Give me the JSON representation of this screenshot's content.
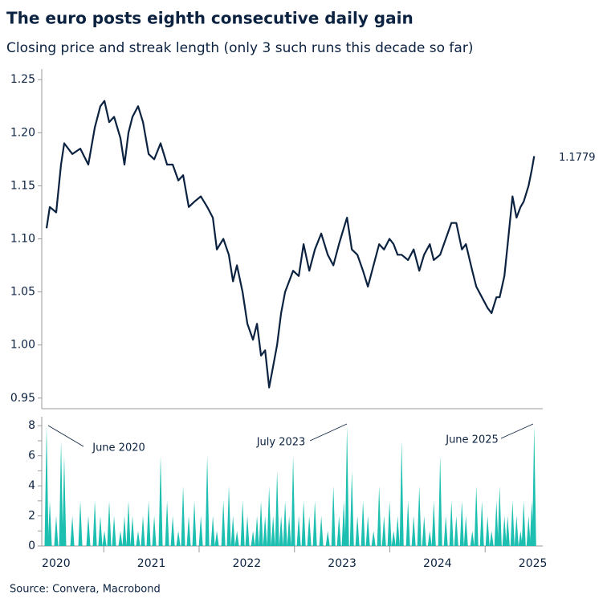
{
  "chart_data": [
    {
      "type": "line",
      "title": "The euro posts eighth consecutive daily gain",
      "subtitle": "Closing price and streak length (only 3 such runs this decade so far)",
      "source": "Source: Convera, Macrobond",
      "x": [
        2020.4,
        2020.434,
        2020.501,
        2020.552,
        2020.585,
        2020.67,
        2020.754,
        2020.838,
        2020.906,
        2020.964,
        2021.007,
        2021.057,
        2021.108,
        2021.175,
        2021.217,
        2021.259,
        2021.301,
        2021.36,
        2021.411,
        2021.47,
        2021.529,
        2021.596,
        2021.664,
        2021.723,
        2021.782,
        2021.832,
        2021.891,
        2021.95,
        2022.018,
        2022.085,
        2022.144,
        2022.186,
        2022.254,
        2022.312,
        2022.355,
        2022.397,
        2022.456,
        2022.506,
        2022.565,
        2022.607,
        2022.649,
        2022.692,
        2022.734,
        2022.776,
        2022.818,
        2022.86,
        2022.902,
        2022.944,
        2022.986,
        2023.045,
        2023.096,
        2023.155,
        2023.214,
        2023.281,
        2023.349,
        2023.408,
        2023.467,
        2023.517,
        2023.551,
        2023.602,
        2023.66,
        2023.719,
        2023.77,
        2023.829,
        2023.888,
        2023.939,
        2023.997,
        2024.04,
        2024.082,
        2024.124,
        2024.191,
        2024.25,
        2024.309,
        2024.36,
        2024.419,
        2024.461,
        2024.528,
        2024.587,
        2024.646,
        2024.697,
        2024.756,
        2024.798,
        2024.865,
        2024.907,
        2024.966,
        2025.025,
        2025.067,
        2025.118,
        2025.152,
        2025.202,
        2025.236,
        2025.287,
        2025.329,
        2025.371,
        2025.404,
        2025.455,
        2025.489,
        2025.514
      ],
      "values": [
        1.11,
        1.13,
        1.125,
        1.17,
        1.19,
        1.18,
        1.185,
        1.17,
        1.205,
        1.225,
        1.23,
        1.21,
        1.215,
        1.195,
        1.17,
        1.2,
        1.215,
        1.225,
        1.21,
        1.18,
        1.175,
        1.19,
        1.17,
        1.17,
        1.155,
        1.16,
        1.13,
        1.135,
        1.14,
        1.13,
        1.12,
        1.09,
        1.1,
        1.085,
        1.06,
        1.075,
        1.05,
        1.02,
        1.005,
        1.02,
        0.99,
        0.995,
        0.96,
        0.98,
        1.0,
        1.03,
        1.05,
        1.06,
        1.07,
        1.065,
        1.095,
        1.07,
        1.09,
        1.105,
        1.085,
        1.075,
        1.095,
        1.11,
        1.12,
        1.09,
        1.085,
        1.07,
        1.055,
        1.075,
        1.095,
        1.09,
        1.1,
        1.095,
        1.085,
        1.085,
        1.08,
        1.09,
        1.07,
        1.085,
        1.095,
        1.08,
        1.085,
        1.1,
        1.115,
        1.115,
        1.09,
        1.095,
        1.07,
        1.055,
        1.045,
        1.035,
        1.03,
        1.045,
        1.045,
        1.065,
        1.095,
        1.14,
        1.12,
        1.13,
        1.135,
        1.15,
        1.165,
        1.1779
      ],
      "color": "#0b2240",
      "xlim": [
        2020.4,
        2025.52
      ],
      "ylim": [
        0.94,
        1.26
      ],
      "yticks": [
        {
          "value": 0.95,
          "label": "0.95"
        },
        {
          "value": 1,
          "label": "1.00"
        },
        {
          "value": 1.05,
          "label": "1.05"
        },
        {
          "value": 1.1,
          "label": "1.10"
        },
        {
          "value": 1.15,
          "label": "1.15"
        },
        {
          "value": 1.2,
          "label": "1.20"
        },
        {
          "value": 1.25,
          "label": "1.25"
        }
      ]
    },
    {
      "type": "spikes",
      "x": [
        2020.4,
        2020.434,
        2020.501,
        2020.552,
        2020.585,
        2020.67,
        2020.754,
        2020.838,
        2020.906,
        2020.964,
        2021.007,
        2021.057,
        2021.108,
        2021.175,
        2021.217,
        2021.259,
        2021.301,
        2021.36,
        2021.411,
        2021.47,
        2021.529,
        2021.596,
        2021.664,
        2021.723,
        2021.782,
        2021.832,
        2021.891,
        2021.95,
        2022.018,
        2022.085,
        2022.144,
        2022.186,
        2022.254,
        2022.312,
        2022.355,
        2022.397,
        2022.456,
        2022.506,
        2022.565,
        2022.607,
        2022.649,
        2022.692,
        2022.734,
        2022.776,
        2022.818,
        2022.86,
        2022.902,
        2022.944,
        2022.986,
        2023.045,
        2023.096,
        2023.155,
        2023.214,
        2023.281,
        2023.349,
        2023.408,
        2023.467,
        2023.517,
        2023.551,
        2023.602,
        2023.66,
        2023.719,
        2023.77,
        2023.829,
        2023.888,
        2023.939,
        2023.997,
        2024.04,
        2024.082,
        2024.124,
        2024.191,
        2024.25,
        2024.309,
        2024.36,
        2024.419,
        2024.461,
        2024.528,
        2024.587,
        2024.646,
        2024.697,
        2024.756,
        2024.798,
        2024.865,
        2024.907,
        2024.966,
        2025.025,
        2025.067,
        2025.118,
        2025.152,
        2025.202,
        2025.236,
        2025.287,
        2025.329,
        2025.371,
        2025.404,
        2025.455,
        2025.489,
        2025.514
      ],
      "values": [
        8,
        3,
        2,
        7,
        6,
        2,
        3,
        2,
        3,
        2,
        1,
        3,
        2,
        1,
        2,
        3,
        2,
        1,
        2,
        3,
        2,
        6,
        3,
        2,
        1,
        4,
        2,
        3,
        2,
        6,
        2,
        1,
        3,
        4,
        2,
        1,
        3,
        2,
        1,
        2,
        3,
        2,
        4,
        2,
        5,
        2,
        3,
        2,
        6,
        2,
        3,
        2,
        3,
        2,
        1,
        4,
        2,
        3,
        8,
        5,
        2,
        3,
        2,
        1,
        4,
        2,
        3,
        1,
        2,
        7,
        3,
        2,
        4,
        2,
        1,
        3,
        6,
        2,
        3,
        2,
        3,
        2,
        1,
        4,
        3,
        2,
        1,
        3,
        4,
        2,
        2,
        3,
        2,
        1,
        3,
        2,
        3,
        8
      ],
      "color": "#1cbfb0",
      "xlim": [
        2020.4,
        2025.52
      ],
      "ylim": [
        0,
        8.6
      ],
      "yticks": [
        0,
        2,
        4,
        6,
        8
      ],
      "yminorticks": [
        1,
        3,
        5,
        7
      ],
      "xticks": [
        {
          "value": 2020.5,
          "label": "2020"
        },
        {
          "value": 2021.5,
          "label": "2021"
        },
        {
          "value": 2022.5,
          "label": "2022"
        },
        {
          "value": 2023.5,
          "label": "2023"
        },
        {
          "value": 2024.5,
          "label": "2024"
        },
        {
          "value": 2025.5,
          "label": "2025"
        }
      ],
      "x_boundaries": [
        2021,
        2022,
        2023,
        2024,
        2025
      ],
      "annotations": [
        "June 2020",
        "July 2023",
        "June 2025"
      ]
    }
  ]
}
